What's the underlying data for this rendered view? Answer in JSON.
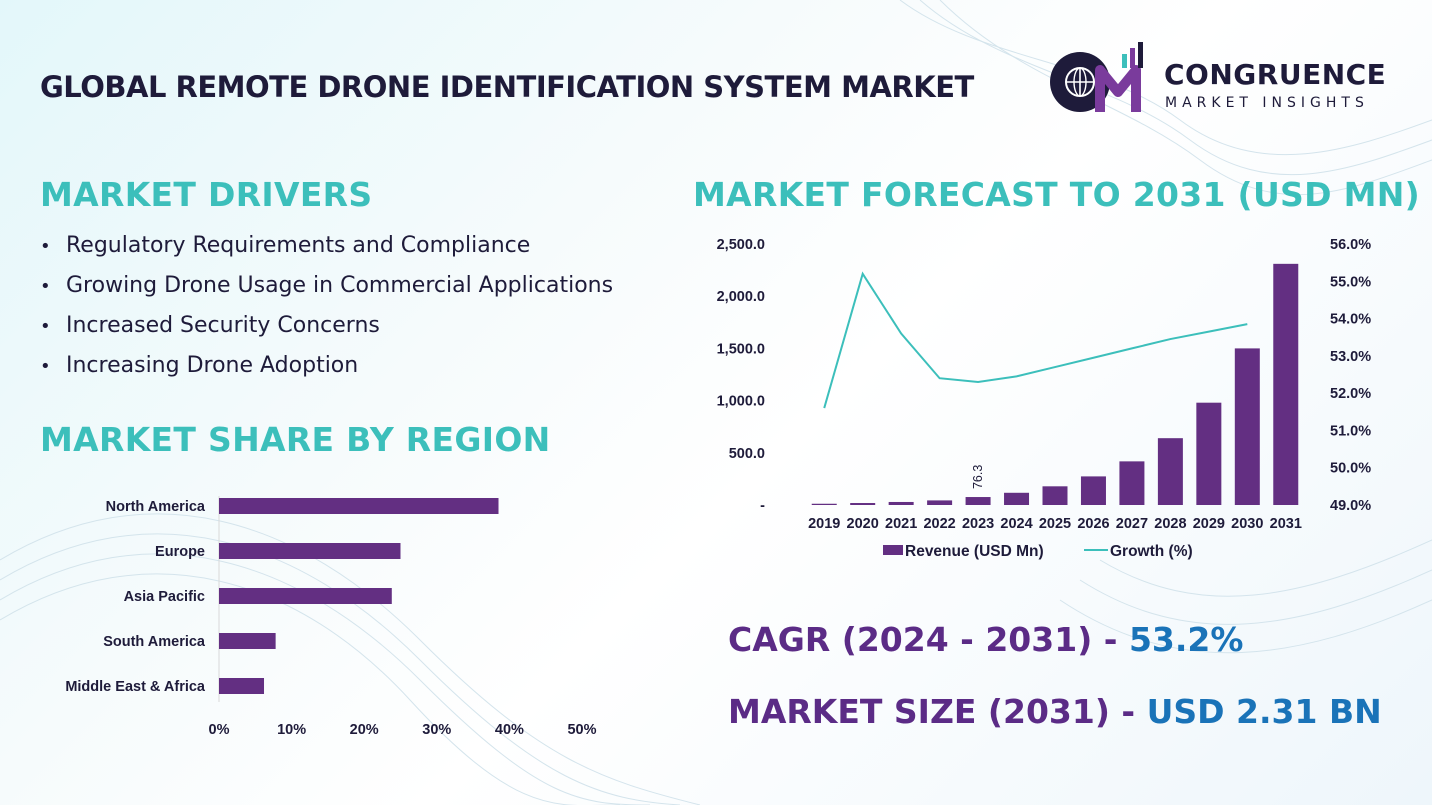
{
  "header": {
    "title": "GLOBAL REMOTE DRONE IDENTIFICATION SYSTEM MARKET",
    "logo_brand": "CONGRUENCE",
    "logo_subtitle": "MARKET INSIGHTS",
    "logo_mark": "CM"
  },
  "drivers": {
    "heading": "MARKET DRIVERS",
    "items": [
      "Regulatory Requirements and Compliance",
      "Growing Drone Usage in Commercial Applications",
      "Increased Security Concerns",
      "Increasing Drone Adoption"
    ]
  },
  "region": {
    "heading": "MARKET SHARE BY REGION"
  },
  "forecast": {
    "heading": "MARKET FORECAST TO 2031 (USD MN)"
  },
  "stats": {
    "cagr_label": "CAGR (2024 - 2031)",
    "cagr_sep": " - ",
    "cagr_value": "53.2%",
    "size_label": "MARKET SIZE (2031)",
    "size_sep": " - ",
    "size_value": "USD 2.31 BN"
  },
  "colors": {
    "bar": "#632f82",
    "line": "#3cbfbb",
    "heading": "#3cbfbb",
    "title": "#1e1b3a",
    "stat_label": "#5b2b86",
    "stat_value": "#1a73b8"
  },
  "chart_data": [
    {
      "type": "bar",
      "orientation": "horizontal",
      "categories": [
        "North America",
        "Europe",
        "Asia Pacific",
        "South America",
        "Middle East & Africa"
      ],
      "values": [
        38.5,
        25,
        23.8,
        7.8,
        6.2
      ],
      "xlim": [
        0,
        50
      ],
      "x_ticks": [
        "0%",
        "10%",
        "20%",
        "30%",
        "40%",
        "50%"
      ],
      "grid": false
    },
    {
      "type": "bar+line",
      "categories": [
        "2019",
        "2020",
        "2021",
        "2022",
        "2023",
        "2024",
        "2025",
        "2026",
        "2027",
        "2028",
        "2029",
        "2030",
        "2031"
      ],
      "series": [
        {
          "name": "Revenue (USD Mn)",
          "type": "bar",
          "axis": "left",
          "values": [
            12,
            19,
            29,
            44,
            76.3,
            117,
            179,
            274,
            418,
            640,
            980,
            1500,
            2310
          ]
        },
        {
          "name": "Growth (%)",
          "type": "line",
          "axis": "right",
          "values": [
            51.6,
            55.2,
            53.6,
            52.4,
            52.3,
            52.45,
            52.7,
            52.95,
            53.2,
            53.45,
            53.65,
            53.85,
            null
          ]
        }
      ],
      "data_labels": [
        {
          "category": "2023",
          "text": "76.3"
        }
      ],
      "ylim_left": [
        0,
        2500
      ],
      "y_ticks_left": [
        "-",
        "500.0",
        "1,000.0",
        "1,500.0",
        "2,000.0",
        "2,500.0"
      ],
      "ylim_right": [
        49,
        56
      ],
      "y_ticks_right": [
        "49.0%",
        "50.0%",
        "51.0%",
        "52.0%",
        "53.0%",
        "54.0%",
        "55.0%",
        "56.0%"
      ],
      "legend": "bottom",
      "grid": false
    }
  ]
}
